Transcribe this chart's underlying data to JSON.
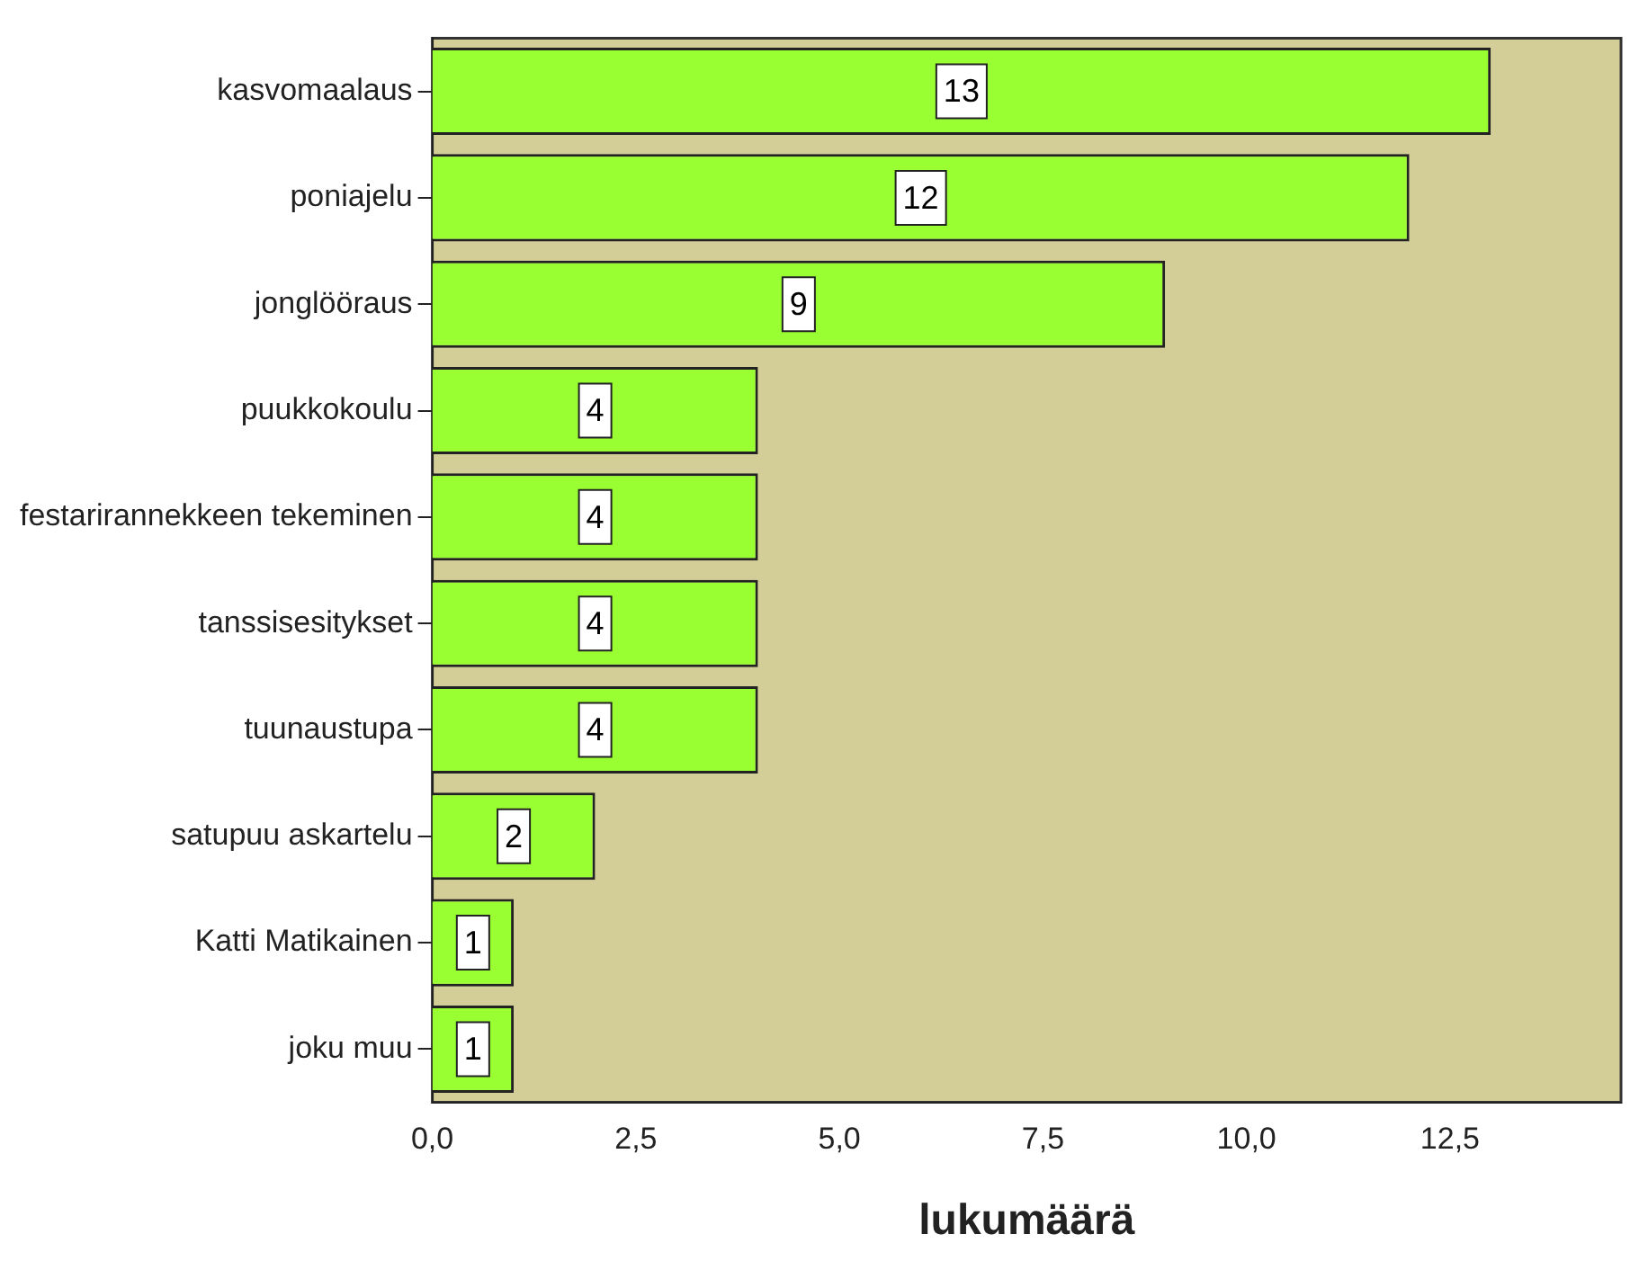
{
  "chart_data": {
    "type": "bar",
    "orientation": "horizontal",
    "xlabel": "lukumäärä",
    "categories": [
      "kasvomaalaus",
      "poniajelu",
      "jonglööraus",
      "puukkokoulu",
      "festarirannekkeen tekeminen",
      "tanssisesitykset",
      "tuunaustupa",
      "satupuu askartelu",
      "Katti Matikainen",
      "joku muu"
    ],
    "values": [
      13,
      12,
      9,
      4,
      4,
      4,
      4,
      2,
      1,
      1
    ],
    "color": "#99ff33",
    "xlim": [
      0,
      14.6
    ],
    "xticks": [
      {
        "value": 0,
        "label": "0,0"
      },
      {
        "value": 2.5,
        "label": "2,5"
      },
      {
        "value": 5,
        "label": "5,0"
      },
      {
        "value": 7.5,
        "label": "7,5"
      },
      {
        "value": 10,
        "label": "10,0"
      },
      {
        "value": 12.5,
        "label": "12,5"
      }
    ],
    "data_labels": true,
    "grid": false,
    "legend": false
  }
}
